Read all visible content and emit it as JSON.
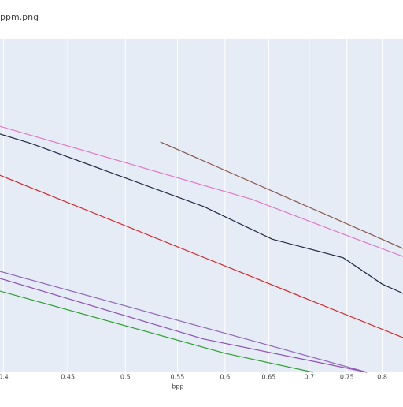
{
  "chart_data": {
    "type": "line",
    "title": "ppm.png",
    "xlabel": "bpp",
    "xscale": "log",
    "xlim": [
      0.3975,
      0.831
    ],
    "xticks": [
      0.4,
      0.45,
      0.5,
      0.55,
      0.6,
      0.65,
      0.7,
      0.75,
      0.8
    ],
    "ylim": [
      0,
      100
    ],
    "grid": true,
    "series": [
      {
        "color": "#1f2a44",
        "x": [
          0.3975,
          0.421,
          0.577,
          0.654,
          0.745,
          0.8,
          0.831
        ],
        "values": [
          71.6,
          68.7,
          49.8,
          40.0,
          34.4,
          26.5,
          23.7
        ]
      },
      {
        "color": "#e377c2",
        "x": [
          0.3975,
          0.6,
          0.631,
          0.745,
          0.831
        ],
        "values": [
          73.9,
          54.3,
          51.9,
          41.5,
          34.8
        ]
      },
      {
        "color": "#8c564b",
        "x": [
          0.533,
          0.831
        ],
        "values": [
          69.2,
          37.2
        ]
      },
      {
        "color": "#d62728",
        "x": [
          0.3975,
          0.831
        ],
        "values": [
          59.2,
          10.4
        ]
      },
      {
        "color": "#9467bd",
        "x": [
          0.3975,
          0.778
        ],
        "values": [
          30.3,
          0
        ]
      },
      {
        "color": "#8e4fb8",
        "x": [
          0.3975,
          0.577,
          0.778
        ],
        "values": [
          28.2,
          10.0,
          0
        ]
      },
      {
        "color": "#2ca02c",
        "x": [
          0.3975,
          0.6,
          0.705
        ],
        "values": [
          24.4,
          5.7,
          0
        ]
      }
    ]
  }
}
